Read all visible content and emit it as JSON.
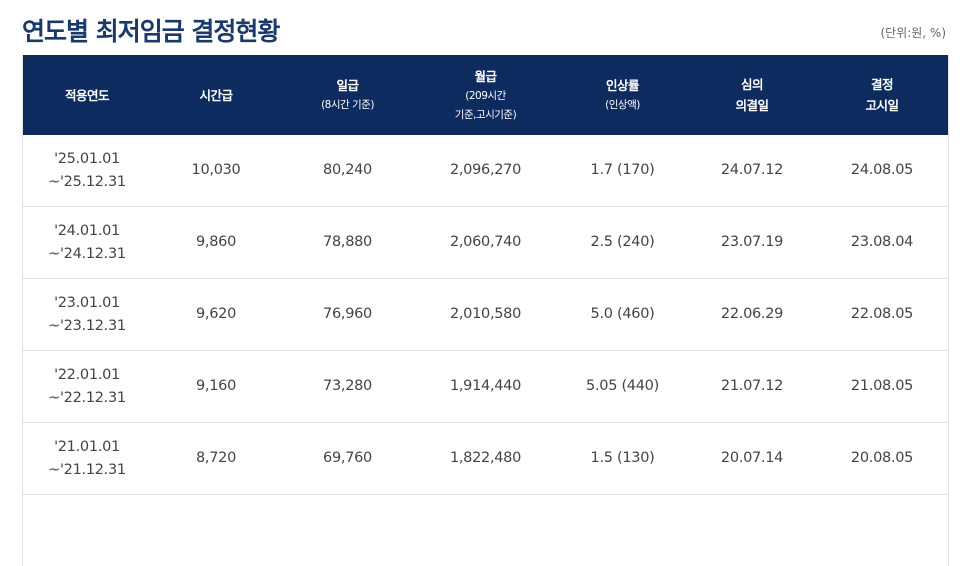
{
  "title": "연도별 최저임금 결정현황",
  "unit": "(단위:원, %)",
  "headers": [
    {
      "main": "적용연도",
      "sub": []
    },
    {
      "main": "시간급",
      "sub": []
    },
    {
      "main": "일급",
      "sub": [
        "(8시간 기준)"
      ]
    },
    {
      "main": "월급",
      "sub": [
        "(209시간",
        "기준,고시기준)"
      ]
    },
    {
      "main": "인상률",
      "sub": [
        "(인상액)"
      ]
    },
    {
      "main": "심의",
      "sub2": "의결일"
    },
    {
      "main": "결정",
      "sub2": "고시일"
    }
  ],
  "rows": [
    {
      "period_start": "'25.01.01",
      "period_end": "~'25.12.31",
      "hourly": "10,030",
      "daily": "80,240",
      "monthly": "2,096,270",
      "increase": "1.7 (170)",
      "deliberation": "24.07.12",
      "announcement": "24.08.05"
    },
    {
      "period_start": "'24.01.01",
      "period_end": "~'24.12.31",
      "hourly": "9,860",
      "daily": "78,880",
      "monthly": "2,060,740",
      "increase": "2.5 (240)",
      "deliberation": "23.07.19",
      "announcement": "23.08.04"
    },
    {
      "period_start": "'23.01.01",
      "period_end": "~'23.12.31",
      "hourly": "9,620",
      "daily": "76,960",
      "monthly": "2,010,580",
      "increase": "5.0 (460)",
      "deliberation": "22.06.29",
      "announcement": "22.08.05"
    },
    {
      "period_start": "'22.01.01",
      "period_end": "~'22.12.31",
      "hourly": "9,160",
      "daily": "73,280",
      "monthly": "1,914,440",
      "increase": "5.05 (440)",
      "deliberation": "21.07.12",
      "announcement": "21.08.05"
    },
    {
      "period_start": "'21.01.01",
      "period_end": "~'21.12.31",
      "hourly": "8,720",
      "daily": "69,760",
      "monthly": "1,822,480",
      "increase": "1.5 (130)",
      "deliberation": "20.07.14",
      "announcement": "20.08.05"
    }
  ]
}
